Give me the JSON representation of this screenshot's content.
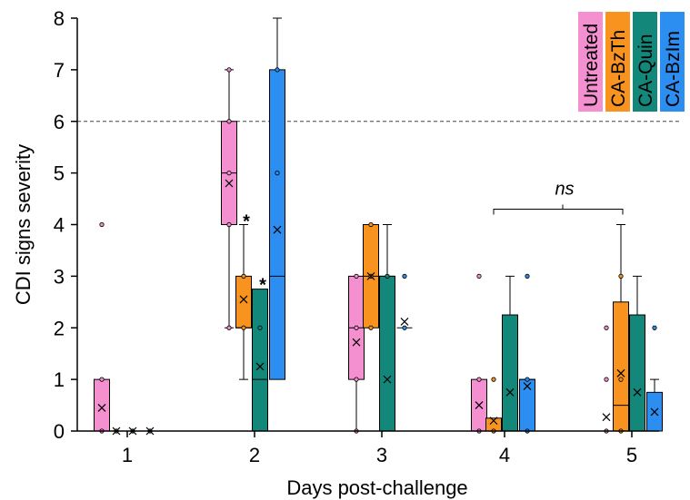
{
  "chart_data": {
    "type": "box",
    "title": "",
    "xlabel": "Days post-challenge",
    "ylabel": "CDI signs severity",
    "ylim": [
      0,
      8
    ],
    "yticks": [
      "0",
      "1",
      "2",
      "3",
      "4",
      "5",
      "6",
      "7",
      "8"
    ],
    "categories": [
      "1",
      "2",
      "3",
      "4",
      "5"
    ],
    "threshold_line": 6,
    "grid": false,
    "legend_position": "top-right",
    "series": [
      {
        "name": "Untreated",
        "color": "#f48fd0",
        "boxes": [
          {
            "day": "1",
            "min": 0,
            "q1": 0,
            "median": 0,
            "q3": 1,
            "max": 1,
            "mean": 0.45,
            "points": [
              4,
              1,
              0
            ]
          },
          {
            "day": "2",
            "min": 2,
            "q1": 4,
            "median": 5,
            "q3": 6,
            "max": 7,
            "mean": 4.8,
            "points": [
              7,
              6,
              5,
              4,
              2
            ]
          },
          {
            "day": "3",
            "min": 0,
            "q1": 1,
            "median": 2,
            "q3": 3,
            "max": 3,
            "mean": 1.72,
            "points": [
              3,
              2,
              1,
              0
            ]
          },
          {
            "day": "4",
            "min": 0,
            "q1": 0,
            "median": 0,
            "q3": 1,
            "max": 1,
            "mean": 0.5,
            "points": [
              3,
              1,
              0
            ]
          },
          {
            "day": "5",
            "min": 0,
            "q1": 0,
            "median": 0,
            "q3": 0,
            "max": 0,
            "mean": 0.27,
            "points": [
              2,
              1,
              0
            ]
          }
        ]
      },
      {
        "name": "CA-BzTh",
        "color": "#f7931e",
        "boxes": [
          {
            "day": "1",
            "min": 0,
            "q1": 0,
            "median": 0,
            "q3": 0,
            "max": 0,
            "mean": 0,
            "points": [
              0
            ]
          },
          {
            "day": "2",
            "min": 1,
            "q1": 2,
            "median": 2,
            "q3": 3,
            "max": 4,
            "mean": 2.55,
            "points": [
              3,
              2
            ]
          },
          {
            "day": "3",
            "min": 2,
            "q1": 2,
            "median": 3,
            "q3": 4,
            "max": 4,
            "mean": 3,
            "points": [
              4,
              3,
              2
            ]
          },
          {
            "day": "4",
            "min": 0,
            "q1": 0,
            "median": 0,
            "q3": 0.25,
            "max": 0.25,
            "mean": 0.2,
            "points": [
              1,
              0
            ]
          },
          {
            "day": "5",
            "min": 0,
            "q1": 0,
            "median": 0.5,
            "q3": 2.5,
            "max": 4,
            "mean": 1.12,
            "points": [
              3,
              1,
              0
            ]
          }
        ]
      },
      {
        "name": "CA-Quin",
        "color": "#13877a",
        "boxes": [
          {
            "day": "1",
            "min": 0,
            "q1": 0,
            "median": 0,
            "q3": 0,
            "max": 0,
            "mean": 0,
            "points": [
              0
            ]
          },
          {
            "day": "2",
            "min": 0,
            "q1": 0,
            "median": 1,
            "q3": 2.75,
            "max": 2.75,
            "mean": 1.25,
            "points": [
              2
            ]
          },
          {
            "day": "3",
            "min": 0,
            "q1": 0,
            "median": 3,
            "q3": 3,
            "max": 4,
            "mean": 1,
            "points": [
              3
            ]
          },
          {
            "day": "4",
            "min": 0,
            "q1": 0,
            "median": 0,
            "q3": 2.25,
            "max": 3,
            "mean": 0.75,
            "points": []
          },
          {
            "day": "5",
            "min": 0,
            "q1": 0,
            "median": 0,
            "q3": 2.25,
            "max": 3,
            "mean": 0.75,
            "points": []
          }
        ]
      },
      {
        "name": "CA-BzIm",
        "color": "#2b8ef0",
        "boxes": [
          {
            "day": "1",
            "min": 0,
            "q1": 0,
            "median": 0,
            "q3": 0,
            "max": 0,
            "mean": 0,
            "points": [
              0
            ]
          },
          {
            "day": "2",
            "min": 1,
            "q1": 1,
            "median": 3,
            "q3": 7,
            "max": 8,
            "mean": 3.9,
            "points": [
              7,
              5
            ]
          },
          {
            "day": "3",
            "min": 2,
            "q1": 2,
            "median": 2,
            "q3": 2,
            "max": 2,
            "mean": 2.12,
            "points": [
              3,
              2
            ]
          },
          {
            "day": "4",
            "min": 0,
            "q1": 0,
            "median": 1,
            "q3": 1,
            "max": 1,
            "mean": 0.87,
            "points": [
              3,
              1,
              0
            ]
          },
          {
            "day": "5",
            "min": 0,
            "q1": 0,
            "median": 0,
            "q3": 0.75,
            "max": 1,
            "mean": 0.37,
            "points": [
              2
            ]
          }
        ]
      }
    ],
    "annotations": [
      {
        "text": "*",
        "day": "2",
        "series": "CA-BzTh",
        "y": 4.05
      },
      {
        "text": "*",
        "day": "2",
        "series": "CA-Quin",
        "y": 2.82
      },
      {
        "text": "ns",
        "from_day": "4",
        "to_day": "5",
        "y": 4.3
      }
    ]
  }
}
